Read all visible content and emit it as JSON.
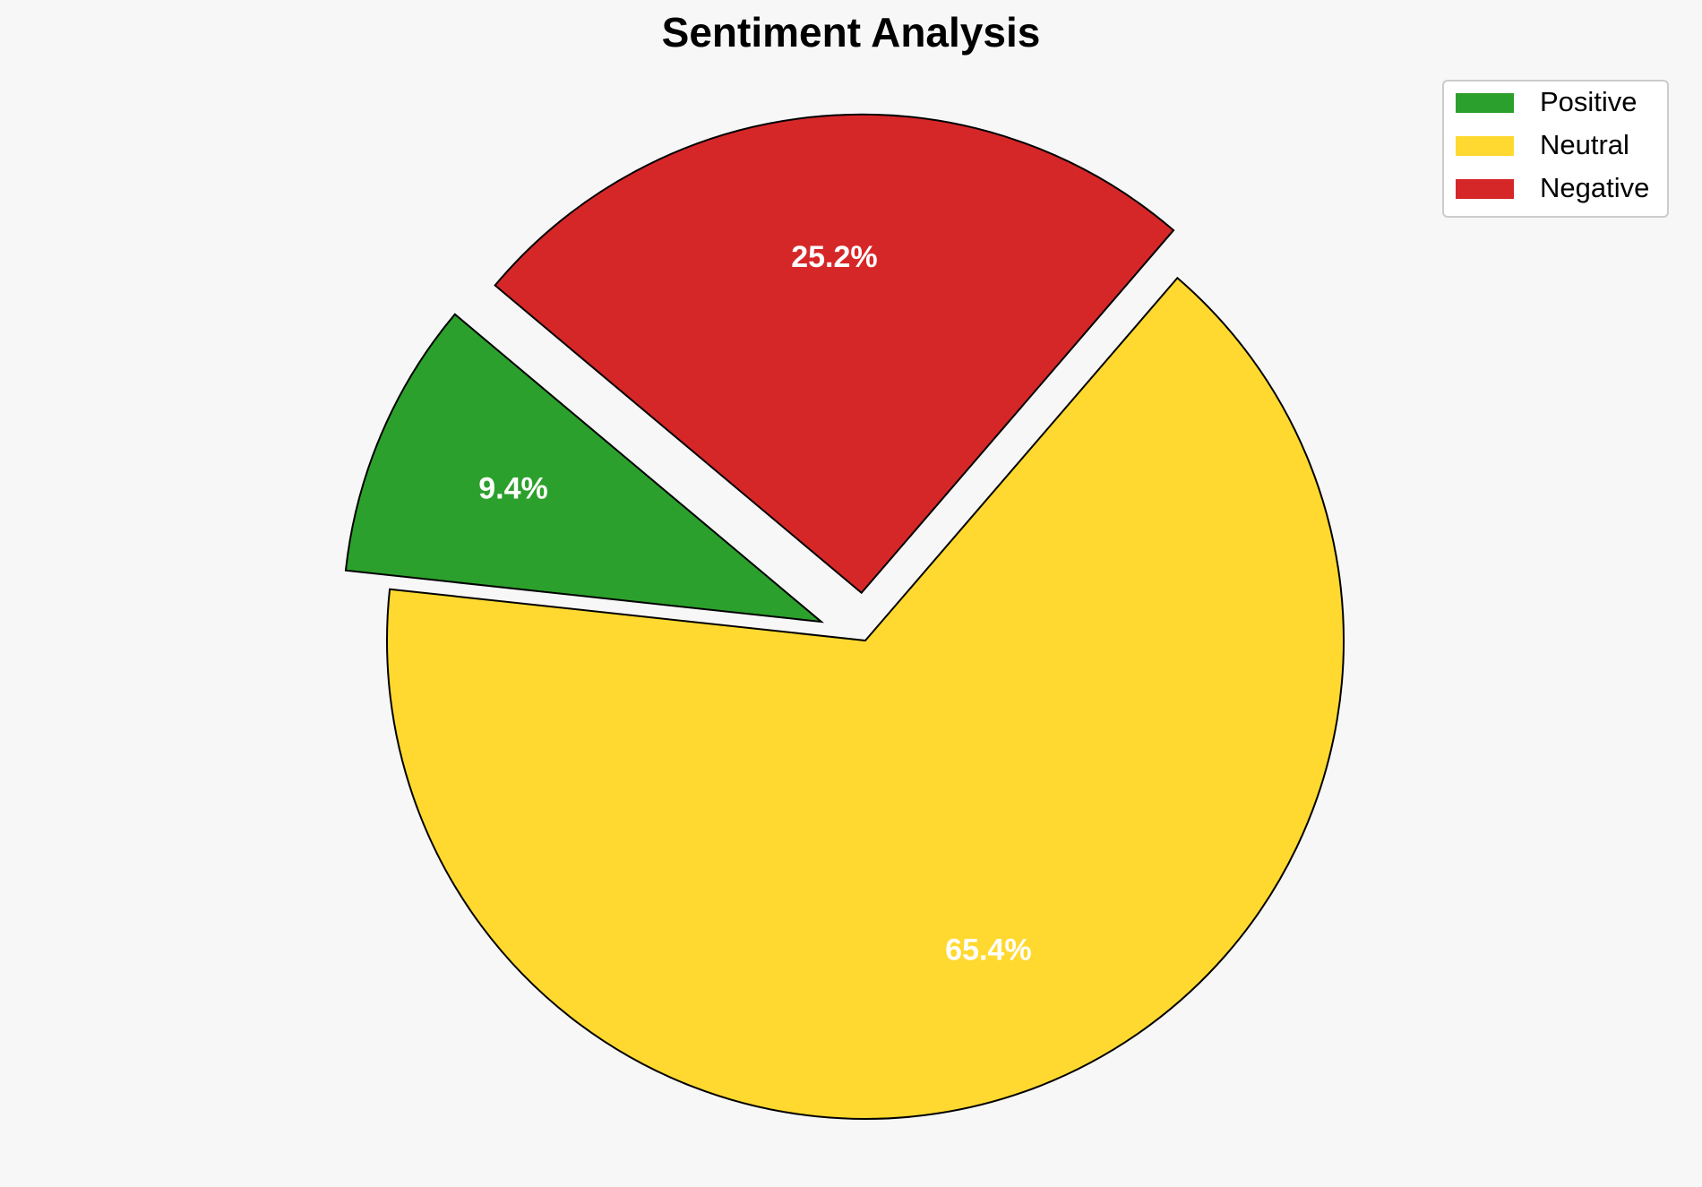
{
  "chart_data": {
    "type": "pie",
    "title": "Sentiment Analysis",
    "categories": [
      "Positive",
      "Neutral",
      "Negative"
    ],
    "values": [
      9.4,
      65.4,
      25.2
    ],
    "value_labels": [
      "9.4%",
      "65.4%",
      "25.2%"
    ],
    "colors": [
      "#2ca02c",
      "#ffd92f",
      "#d62728"
    ],
    "explode": [
      0.1,
      0,
      0.1
    ],
    "startangle": 140,
    "legend": "upper right"
  }
}
